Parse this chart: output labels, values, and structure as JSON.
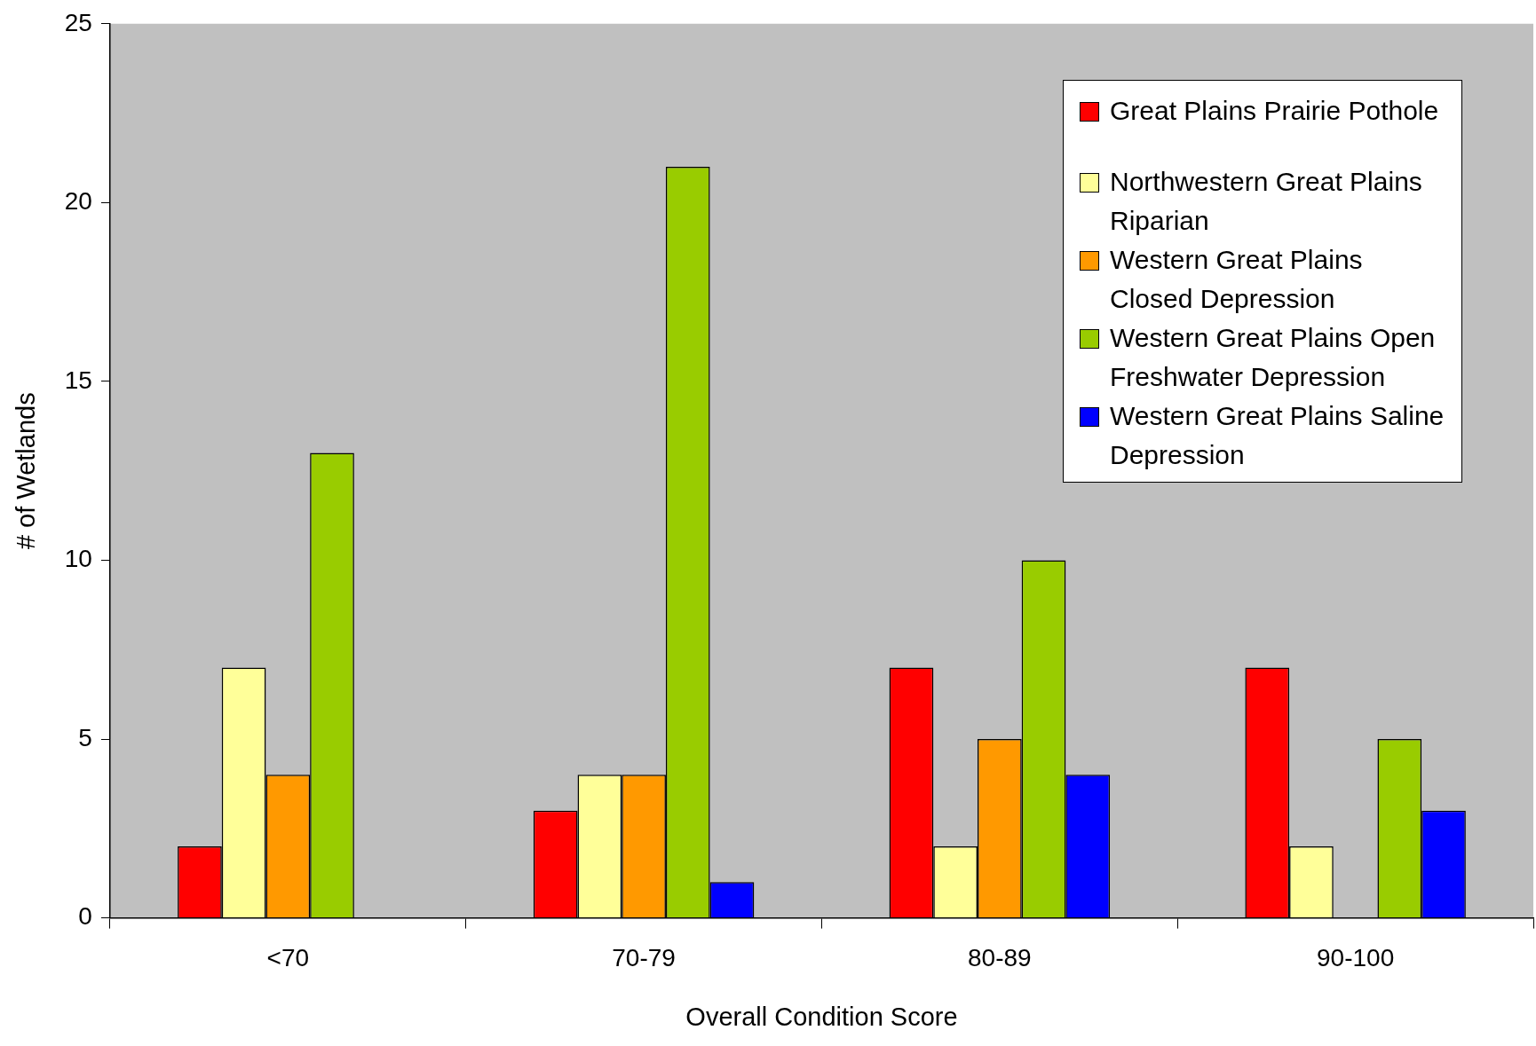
{
  "chart_data": {
    "type": "bar",
    "xlabel": "Overall Condition Score",
    "ylabel": "# of Wetlands",
    "categories": [
      "<70",
      "70-79",
      "80-89",
      "90-100"
    ],
    "series": [
      {
        "name": "Great Plains Prairie Pothole",
        "color": "#ff0000",
        "values": [
          2,
          3,
          7,
          7
        ]
      },
      {
        "name": "Northwestern Great Plains Riparian",
        "color": "#ffff99",
        "values": [
          7,
          4,
          2,
          2
        ]
      },
      {
        "name": "Western Great Plains Closed Depression",
        "color": "#ff9900",
        "values": [
          4,
          4,
          5,
          0
        ]
      },
      {
        "name": "Western Great Plains Open Freshwater Depression",
        "color": "#99cc00",
        "values": [
          13,
          21,
          10,
          5
        ]
      },
      {
        "name": "Western Great Plains Saline Depression",
        "color": "#0000ff",
        "values": [
          0,
          1,
          4,
          3
        ]
      }
    ],
    "ylim": [
      0,
      25
    ],
    "yticks": [
      0,
      5,
      10,
      15,
      20,
      25
    ],
    "grid": false,
    "legend": "top right"
  }
}
